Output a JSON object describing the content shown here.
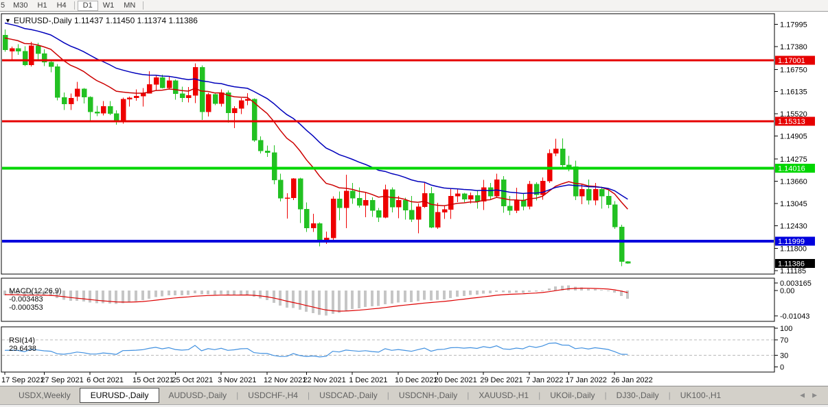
{
  "toolbar": {
    "timeframes": [
      "5",
      "M30",
      "H1",
      "H4",
      "D1",
      "W1",
      "MN"
    ],
    "active": "D1"
  },
  "icons": {
    "symbol_dropdown": "▼",
    "tab_scroll_left": "◀",
    "tab_scroll_right": "▶"
  },
  "chart_header": {
    "symbol": "EURUSD-,Daily",
    "open": "1.11437",
    "high": "1.11450",
    "low": "1.11374",
    "close": "1.11386"
  },
  "chart_data": {
    "type": "candlestick",
    "symbol": "EURUSD-",
    "timeframe": "Daily",
    "price_axis_ticks": [
      1.17995,
      1.1738,
      1.1675,
      1.16135,
      1.1552,
      1.14905,
      1.14275,
      1.1366,
      1.13045,
      1.1243,
      1.118,
      1.11185
    ],
    "levels": [
      {
        "price": 1.17001,
        "label": "1.17001",
        "color": "#e60000",
        "thickness": 3
      },
      {
        "price": 1.15313,
        "label": "1.15313",
        "color": "#e60000",
        "thickness": 3
      },
      {
        "price": 1.14016,
        "label": "1.14016",
        "color": "#00d600",
        "thickness": 4
      },
      {
        "price": 1.11999,
        "label": "1.11999",
        "color": "#0000dd",
        "thickness": 4
      }
    ],
    "current_price": {
      "value": 1.11386,
      "label": "1.11386",
      "bg": "#000000"
    },
    "x_axis_labels": [
      {
        "index": 0,
        "label": "17 Sep 2021"
      },
      {
        "index": 6,
        "label": "27 Sep 2021"
      },
      {
        "index": 13,
        "label": "6 Oct 2021"
      },
      {
        "index": 20,
        "label": "15 Oct 2021"
      },
      {
        "index": 26,
        "label": "25 Oct 2021"
      },
      {
        "index": 33,
        "label": "3 Nov 2021"
      },
      {
        "index": 40,
        "label": "12 Nov 2021"
      },
      {
        "index": 46,
        "label": "22 Nov 2021"
      },
      {
        "index": 53,
        "label": "1 Dec 2021"
      },
      {
        "index": 60,
        "label": "10 Dec 2021"
      },
      {
        "index": 66,
        "label": "20 Dec 2021"
      },
      {
        "index": 73,
        "label": "29 Dec 2021"
      },
      {
        "index": 80,
        "label": "7 Jan 2022"
      },
      {
        "index": 86,
        "label": "17 Jan 2022"
      },
      {
        "index": 93,
        "label": "26 Jan 2022"
      }
    ],
    "candles": [
      [
        "17 Sep",
        1.177,
        1.1785,
        1.1724,
        1.1729
      ],
      [
        "20 Sep",
        1.1725,
        1.1738,
        1.17,
        1.1733
      ],
      [
        "21 Sep",
        1.1733,
        1.1745,
        1.1715,
        1.1725
      ],
      [
        "22 Sep",
        1.1725,
        1.1739,
        1.1684,
        1.1687
      ],
      [
        "23 Sep",
        1.1687,
        1.1751,
        1.1683,
        1.174
      ],
      [
        "24 Sep",
        1.174,
        1.1748,
        1.1701,
        1.1719
      ],
      [
        "27 Sep",
        1.1719,
        1.173,
        1.1684,
        1.1695
      ],
      [
        "28 Sep",
        1.1695,
        1.1703,
        1.1667,
        1.1683
      ],
      [
        "29 Sep",
        1.1683,
        1.169,
        1.1589,
        1.1597
      ],
      [
        "30 Sep",
        1.1597,
        1.1611,
        1.1563,
        1.1579
      ],
      [
        "1 Oct",
        1.1579,
        1.1608,
        1.1563,
        1.1595
      ],
      [
        "4 Oct",
        1.16,
        1.164,
        1.1587,
        1.1621
      ],
      [
        "5 Oct",
        1.1621,
        1.1623,
        1.1581,
        1.1598
      ],
      [
        "6 Oct",
        1.1598,
        1.1601,
        1.1529,
        1.1558
      ],
      [
        "7 Oct",
        1.1558,
        1.1574,
        1.1546,
        1.1554
      ],
      [
        "8 Oct",
        1.1554,
        1.1587,
        1.1548,
        1.1573
      ],
      [
        "11 Oct",
        1.1573,
        1.1587,
        1.1549,
        1.1553
      ],
      [
        "12 Oct",
        1.1553,
        1.1562,
        1.1522,
        1.1529
      ],
      [
        "13 Oct",
        1.1529,
        1.1597,
        1.1525,
        1.1593
      ],
      [
        "14 Oct",
        1.1593,
        1.16,
        1.1572,
        1.1596
      ],
      [
        "15 Oct",
        1.1596,
        1.162,
        1.1588,
        1.1601
      ],
      [
        "18 Oct",
        1.1601,
        1.1623,
        1.1572,
        1.1609
      ],
      [
        "19 Oct",
        1.1609,
        1.167,
        1.1609,
        1.1633
      ],
      [
        "20 Oct",
        1.1633,
        1.1659,
        1.1617,
        1.1652
      ],
      [
        "21 Oct",
        1.1652,
        1.166,
        1.1622,
        1.1624
      ],
      [
        "22 Oct",
        1.1624,
        1.1656,
        1.162,
        1.1644
      ],
      [
        "25 Oct",
        1.1644,
        1.1647,
        1.1591,
        1.1608
      ],
      [
        "26 Oct",
        1.1608,
        1.1627,
        1.1585,
        1.1596
      ],
      [
        "27 Oct",
        1.1596,
        1.1626,
        1.1584,
        1.1603
      ],
      [
        "28 Oct",
        1.1603,
        1.1692,
        1.1582,
        1.1681
      ],
      [
        "29 Oct",
        1.1681,
        1.1686,
        1.1535,
        1.1558
      ],
      [
        "1 Nov",
        1.1558,
        1.161,
        1.1545,
        1.1606
      ],
      [
        "2 Nov",
        1.1606,
        1.1608,
        1.1576,
        1.158
      ],
      [
        "3 Nov",
        1.158,
        1.162,
        1.1572,
        1.1611
      ],
      [
        "4 Nov",
        1.1611,
        1.1617,
        1.1528,
        1.1555
      ],
      [
        "5 Nov",
        1.1555,
        1.1573,
        1.1513,
        1.1567
      ],
      [
        "8 Nov",
        1.1567,
        1.1596,
        1.1551,
        1.1589
      ],
      [
        "9 Nov",
        1.1589,
        1.1609,
        1.1576,
        1.1593
      ],
      [
        "10 Nov",
        1.1593,
        1.1595,
        1.1475,
        1.1479
      ],
      [
        "11 Nov",
        1.1479,
        1.149,
        1.1443,
        1.145
      ],
      [
        "12 Nov",
        1.145,
        1.1464,
        1.1433,
        1.1445
      ],
      [
        "15 Nov",
        1.1445,
        1.1465,
        1.1357,
        1.1369
      ],
      [
        "16 Nov",
        1.1369,
        1.1387,
        1.131,
        1.1319
      ],
      [
        "17 Nov",
        1.1319,
        1.1333,
        1.1263,
        1.132
      ],
      [
        "18 Nov",
        1.132,
        1.1374,
        1.1314,
        1.1373
      ],
      [
        "19 Nov",
        1.1373,
        1.1375,
        1.125,
        1.1289
      ],
      [
        "22 Nov",
        1.1289,
        1.1307,
        1.1226,
        1.1237
      ],
      [
        "23 Nov",
        1.1237,
        1.1276,
        1.1226,
        1.1249
      ],
      [
        "24 Nov",
        1.1249,
        1.1252,
        1.1186,
        1.1199
      ],
      [
        "25 Nov",
        1.1199,
        1.1227,
        1.1193,
        1.1209
      ],
      [
        "26 Nov",
        1.1209,
        1.1324,
        1.1203,
        1.1317
      ],
      [
        "29 Nov",
        1.1317,
        1.1337,
        1.1258,
        1.1292
      ],
      [
        "30 Nov",
        1.1292,
        1.1384,
        1.1236,
        1.1339
      ],
      [
        "1 Dec",
        1.1339,
        1.1361,
        1.1303,
        1.1319
      ],
      [
        "2 Dec",
        1.1319,
        1.1349,
        1.1293,
        1.1299
      ],
      [
        "3 Dec",
        1.1299,
        1.1334,
        1.1266,
        1.1313
      ],
      [
        "6 Dec",
        1.1313,
        1.1321,
        1.1267,
        1.1285
      ],
      [
        "7 Dec",
        1.1285,
        1.1292,
        1.1253,
        1.1266
      ],
      [
        "8 Dec",
        1.1266,
        1.1356,
        1.1264,
        1.1343
      ],
      [
        "9 Dec",
        1.1343,
        1.1349,
        1.128,
        1.1294
      ],
      [
        "10 Dec",
        1.1294,
        1.1325,
        1.1264,
        1.1313
      ],
      [
        "13 Dec",
        1.1313,
        1.132,
        1.126,
        1.1286
      ],
      [
        "14 Dec",
        1.1286,
        1.1325,
        1.1253,
        1.126
      ],
      [
        "15 Dec",
        1.126,
        1.1304,
        1.1222,
        1.1295
      ],
      [
        "16 Dec",
        1.1295,
        1.1361,
        1.1292,
        1.1332
      ],
      [
        "17 Dec",
        1.1332,
        1.135,
        1.1236,
        1.1238
      ],
      [
        "20 Dec",
        1.1238,
        1.1306,
        1.1234,
        1.128
      ],
      [
        "21 Dec",
        1.128,
        1.1298,
        1.1262,
        1.1288
      ],
      [
        "22 Dec",
        1.1288,
        1.1344,
        1.1262,
        1.1325
      ],
      [
        "23 Dec",
        1.1325,
        1.1343,
        1.1308,
        1.1331
      ],
      [
        "24 Dec",
        1.1331,
        1.1334,
        1.1308,
        1.1316
      ],
      [
        "27 Dec",
        1.1316,
        1.1335,
        1.1304,
        1.1327
      ],
      [
        "28 Dec",
        1.1327,
        1.1341,
        1.129,
        1.131
      ],
      [
        "29 Dec",
        1.131,
        1.137,
        1.1286,
        1.1348
      ],
      [
        "30 Dec",
        1.1348,
        1.1361,
        1.1316,
        1.1325
      ],
      [
        "31 Dec",
        1.1325,
        1.1387,
        1.1321,
        1.137
      ],
      [
        "3 Jan",
        1.137,
        1.138,
        1.1279,
        1.1297
      ],
      [
        "4 Jan",
        1.1297,
        1.1325,
        1.1272,
        1.1285
      ],
      [
        "5 Jan",
        1.1285,
        1.1348,
        1.1278,
        1.1314
      ],
      [
        "6 Jan",
        1.1314,
        1.1333,
        1.1285,
        1.1296
      ],
      [
        "7 Jan",
        1.1296,
        1.1367,
        1.1288,
        1.1358
      ],
      [
        "10 Jan",
        1.1358,
        1.1363,
        1.1313,
        1.1328
      ],
      [
        "11 Jan",
        1.1328,
        1.1376,
        1.1315,
        1.1366
      ],
      [
        "12 Jan",
        1.1366,
        1.1454,
        1.1361,
        1.1443
      ],
      [
        "13 Jan",
        1.1443,
        1.1483,
        1.1435,
        1.1455
      ],
      [
        "14 Jan",
        1.1455,
        1.1484,
        1.1398,
        1.1411
      ],
      [
        "17 Jan",
        1.1411,
        1.1436,
        1.1393,
        1.1406
      ],
      [
        "18 Jan",
        1.1406,
        1.1423,
        1.1314,
        1.1325
      ],
      [
        "19 Jan",
        1.1325,
        1.1359,
        1.1302,
        1.1344
      ],
      [
        "20 Jan",
        1.1344,
        1.1371,
        1.1301,
        1.1313
      ],
      [
        "21 Jan",
        1.1313,
        1.1361,
        1.13,
        1.1344
      ],
      [
        "24 Jan",
        1.1344,
        1.1351,
        1.129,
        1.1325
      ],
      [
        "25 Jan",
        1.1325,
        1.134,
        1.1291,
        1.1301
      ],
      [
        "26 Jan",
        1.1301,
        1.1311,
        1.1234,
        1.1239
      ],
      [
        "27 Jan",
        1.1239,
        1.1246,
        1.1131,
        1.1144
      ],
      [
        "28 Jan",
        1.11437,
        1.1145,
        1.11374,
        1.11386
      ]
    ],
    "moving_averages": [
      {
        "name": "ma-fast",
        "period": 16,
        "seed": 1.1766,
        "color": "#cc0000"
      },
      {
        "name": "ma-slow",
        "period": 32,
        "seed": 1.1808,
        "color": "#0000bb"
      }
    ],
    "macd": {
      "label": "MACD(12,26,9)",
      "value": "-0.003483",
      "signal_value": "-0.000353",
      "fast": 12,
      "slow": 26,
      "signal": 9,
      "seed_fast": 1.1747,
      "seed_slow": 1.1767,
      "seed_signal": -0.0016,
      "axis_ticks": [
        {
          "v": 0.003165,
          "label": "0.003165"
        },
        {
          "v": 0,
          "label": "0.00"
        },
        {
          "v": -0.01043,
          "label": "-0.01043"
        }
      ],
      "histogram_color": "#c6c6c6",
      "signal_color": "#dd0000"
    },
    "rsi": {
      "label": "RSI(14)",
      "value": "29.6438",
      "period": 14,
      "seed_gain": 0.0018,
      "seed_loss": 0.0024,
      "axis_ticks": [
        100,
        70,
        30,
        0
      ],
      "dashed_levels": [
        70,
        30
      ],
      "color": "#4090e0",
      "dash_color": "#b8b8b8"
    }
  },
  "tabs": {
    "items": [
      "USDX,Weekly",
      "EURUSD-,Daily",
      "AUDUSD-,Daily",
      "USDCHF-,H4",
      "USDCAD-,Daily",
      "USDCNH-,Daily",
      "XAUUSD-,H1",
      "UKOil-,Daily",
      "DJ30-,Daily",
      "UK100-,H1"
    ],
    "active_index": 1
  },
  "colors": {
    "bull": "#ee0000",
    "bear": "#22c122",
    "panel_border": "#000000",
    "background": "#ffffff"
  }
}
